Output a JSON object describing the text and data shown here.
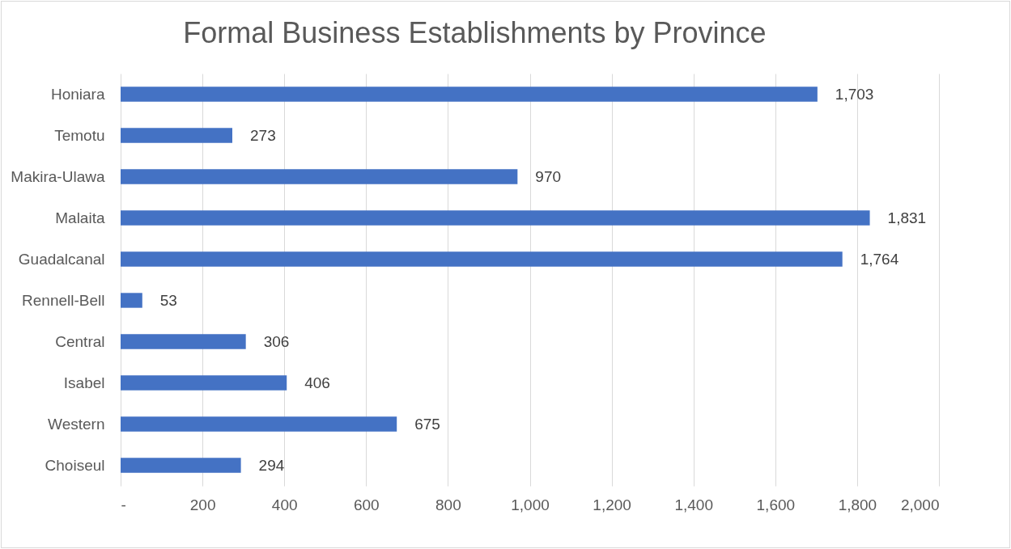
{
  "chart_data": {
    "type": "bar",
    "orientation": "horizontal",
    "title": "Formal Business Establishments by Province",
    "categories": [
      "Honiara",
      "Temotu",
      "Makira-Ulawa",
      "Malaita",
      "Guadalcanal",
      "Rennell-Bell",
      "Central",
      "Isabel",
      "Western",
      "Choiseul"
    ],
    "values": [
      1703,
      273,
      970,
      1831,
      1764,
      53,
      306,
      406,
      675,
      294
    ],
    "color": "#4472c4",
    "xlim": [
      0,
      2000
    ],
    "xticks": [
      {
        "value": 0,
        "label": "-"
      },
      200,
      400,
      600,
      800,
      {
        "value": 1000,
        "label": "1,000"
      },
      {
        "value": 1200,
        "label": "1,200"
      },
      {
        "value": 1400,
        "label": "1,400"
      },
      {
        "value": 1600,
        "label": "1,600"
      },
      {
        "value": 1800,
        "label": "1,800"
      },
      {
        "value": 2000,
        "label": "2,000"
      }
    ],
    "grid": "x",
    "value_labels": [
      "1,703",
      "273",
      "970",
      "1,831",
      "1,764",
      "53",
      "306",
      "406",
      "675",
      "294"
    ]
  }
}
